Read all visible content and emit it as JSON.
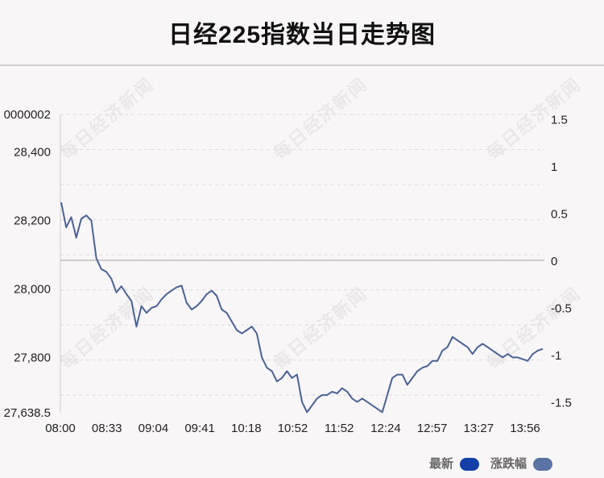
{
  "title": "日经225指数当日走势图",
  "watermark": "每日经济新闻",
  "legend": {
    "latest": "最新",
    "change": "涨跌幅",
    "latest_color": "#1240a6",
    "change_color": "#5a72a4"
  },
  "line_color": "#4a6296",
  "chart_data": {
    "type": "line",
    "title": "日经225指数当日走势图",
    "x_ticks": [
      "08:00",
      "08:33",
      "09:04",
      "09:41",
      "10:18",
      "10:52",
      "11:52",
      "12:24",
      "12:57",
      "13:27",
      "13:56"
    ],
    "y_left_ticks": [
      "0000002",
      "28,400",
      "28,200",
      "28,000",
      "27,800",
      "27,638.5"
    ],
    "y_left_values": [
      28510,
      28400,
      28200,
      28000,
      27800,
      27638.5
    ],
    "y_right_ticks": [
      "1.5",
      "1",
      "0.5",
      "0",
      "-0.5",
      "-1",
      "-1.5"
    ],
    "y_right_values": [
      1.5,
      1,
      0.5,
      0,
      -0.5,
      -1,
      -1.5
    ],
    "ylim": [
      27638.5,
      28510
    ],
    "baseline": 28084,
    "grid": "dashed",
    "legend_position": "bottom-right",
    "series": [
      {
        "name": "最新",
        "x_range": [
          "08:00",
          "13:58"
        ],
        "values": [
          28253,
          28180,
          28210,
          28150,
          28205,
          28215,
          28200,
          28090,
          28058,
          28050,
          28030,
          27990,
          28008,
          27985,
          27965,
          27890,
          27950,
          27930,
          27945,
          27950,
          27970,
          27985,
          27995,
          28005,
          28010,
          27960,
          27940,
          27950,
          27965,
          27985,
          27995,
          27980,
          27940,
          27930,
          27905,
          27880,
          27870,
          27880,
          27890,
          27870,
          27800,
          27770,
          27760,
          27730,
          27740,
          27760,
          27740,
          27750,
          27670,
          27640,
          27660,
          27680,
          27690,
          27690,
          27700,
          27695,
          27710,
          27700,
          27680,
          27670,
          27680,
          27670,
          27660,
          27650,
          27640,
          27690,
          27740,
          27750,
          27750,
          27720,
          27740,
          27760,
          27770,
          27775,
          27790,
          27790,
          27820,
          27830,
          27860,
          27850,
          27840,
          27830,
          27810,
          27830,
          27840,
          27830,
          27820,
          27810,
          27800,
          27810,
          27800,
          27800,
          27795,
          27790,
          27810,
          27820,
          27825
        ]
      }
    ]
  }
}
